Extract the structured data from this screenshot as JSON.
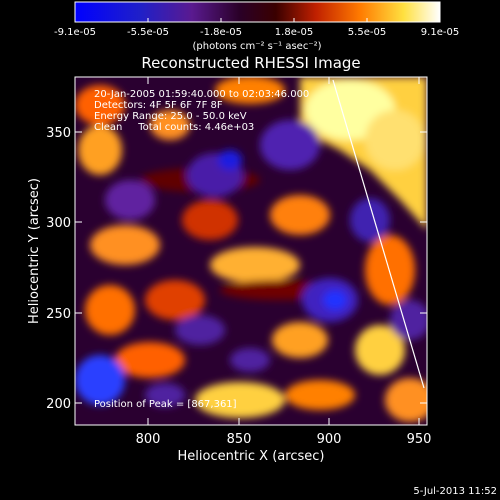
{
  "colorbar": {
    "tick_labels": [
      "-9.1e-05",
      "-5.5e-05",
      "-1.8e-05",
      "1.8e-05",
      "5.5e-05",
      "9.1e-05"
    ],
    "units": "(photons cm⁻² s⁻¹ asec⁻²)"
  },
  "title": "Reconstructed RHESSI Image",
  "annotations": {
    "line1": "20-Jan-2005 01:59:40.000 to 02:03:46.000",
    "line2": "Detectors: 4F 5F 6F 7F 8F",
    "line3": "Energy Range: 25.0 - 50.0 keV",
    "line4": "Clean     Total counts: 4.46e+03",
    "peak": "Position of Peak = [867,361]"
  },
  "axes": {
    "xlabel": "Heliocentric X (arcsec)",
    "ylabel": "Heliocentric Y (arcsec)",
    "x_ticks": [
      "800",
      "850",
      "900",
      "950"
    ],
    "y_ticks": [
      "200",
      "250",
      "300",
      "350"
    ]
  },
  "footer": {
    "timestamp": "5-Jul-2013 11:52"
  },
  "colors": {
    "cmap_low": "#0000ff",
    "cmap_mid": "#2a0030",
    "cmap_high": "#ffffff",
    "limb_line": "#ffffff"
  }
}
